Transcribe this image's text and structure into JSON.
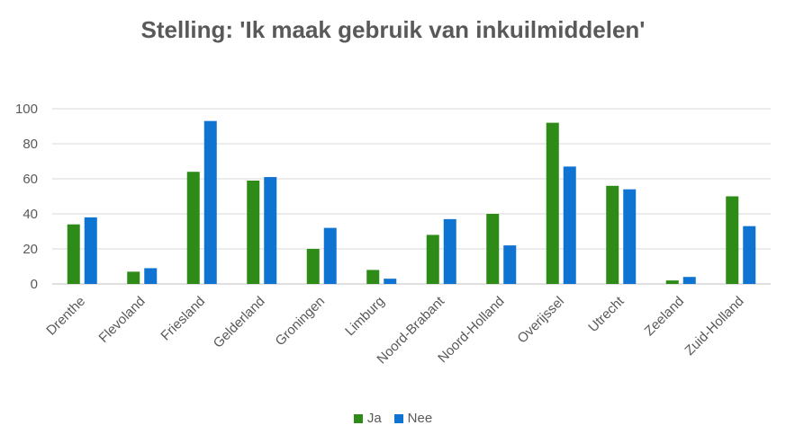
{
  "chart_data": {
    "type": "bar",
    "title": "Stelling: 'Ik maak gebruik van inkuilmiddelen'",
    "categories": [
      "Drenthe",
      "Flevoland",
      "Friesland",
      "Gelderland",
      "Groningen",
      "Limburg",
      "Noord-Brabant",
      "Noord-Holland",
      "Overijssel",
      "Utrecht",
      "Zeeland",
      "Zuid-Holland"
    ],
    "series": [
      {
        "name": "Ja",
        "color": "#2e8b17",
        "values": [
          34,
          7,
          64,
          59,
          20,
          8,
          28,
          40,
          92,
          56,
          2,
          50
        ]
      },
      {
        "name": "Nee",
        "color": "#0f73d1",
        "values": [
          38,
          9,
          93,
          61,
          32,
          3,
          37,
          22,
          67,
          54,
          4,
          33
        ]
      }
    ],
    "ylim": [
      0,
      100
    ],
    "yticks": [
      0,
      20,
      40,
      60,
      80,
      100
    ],
    "grid": true,
    "legend_position": "bottom"
  }
}
